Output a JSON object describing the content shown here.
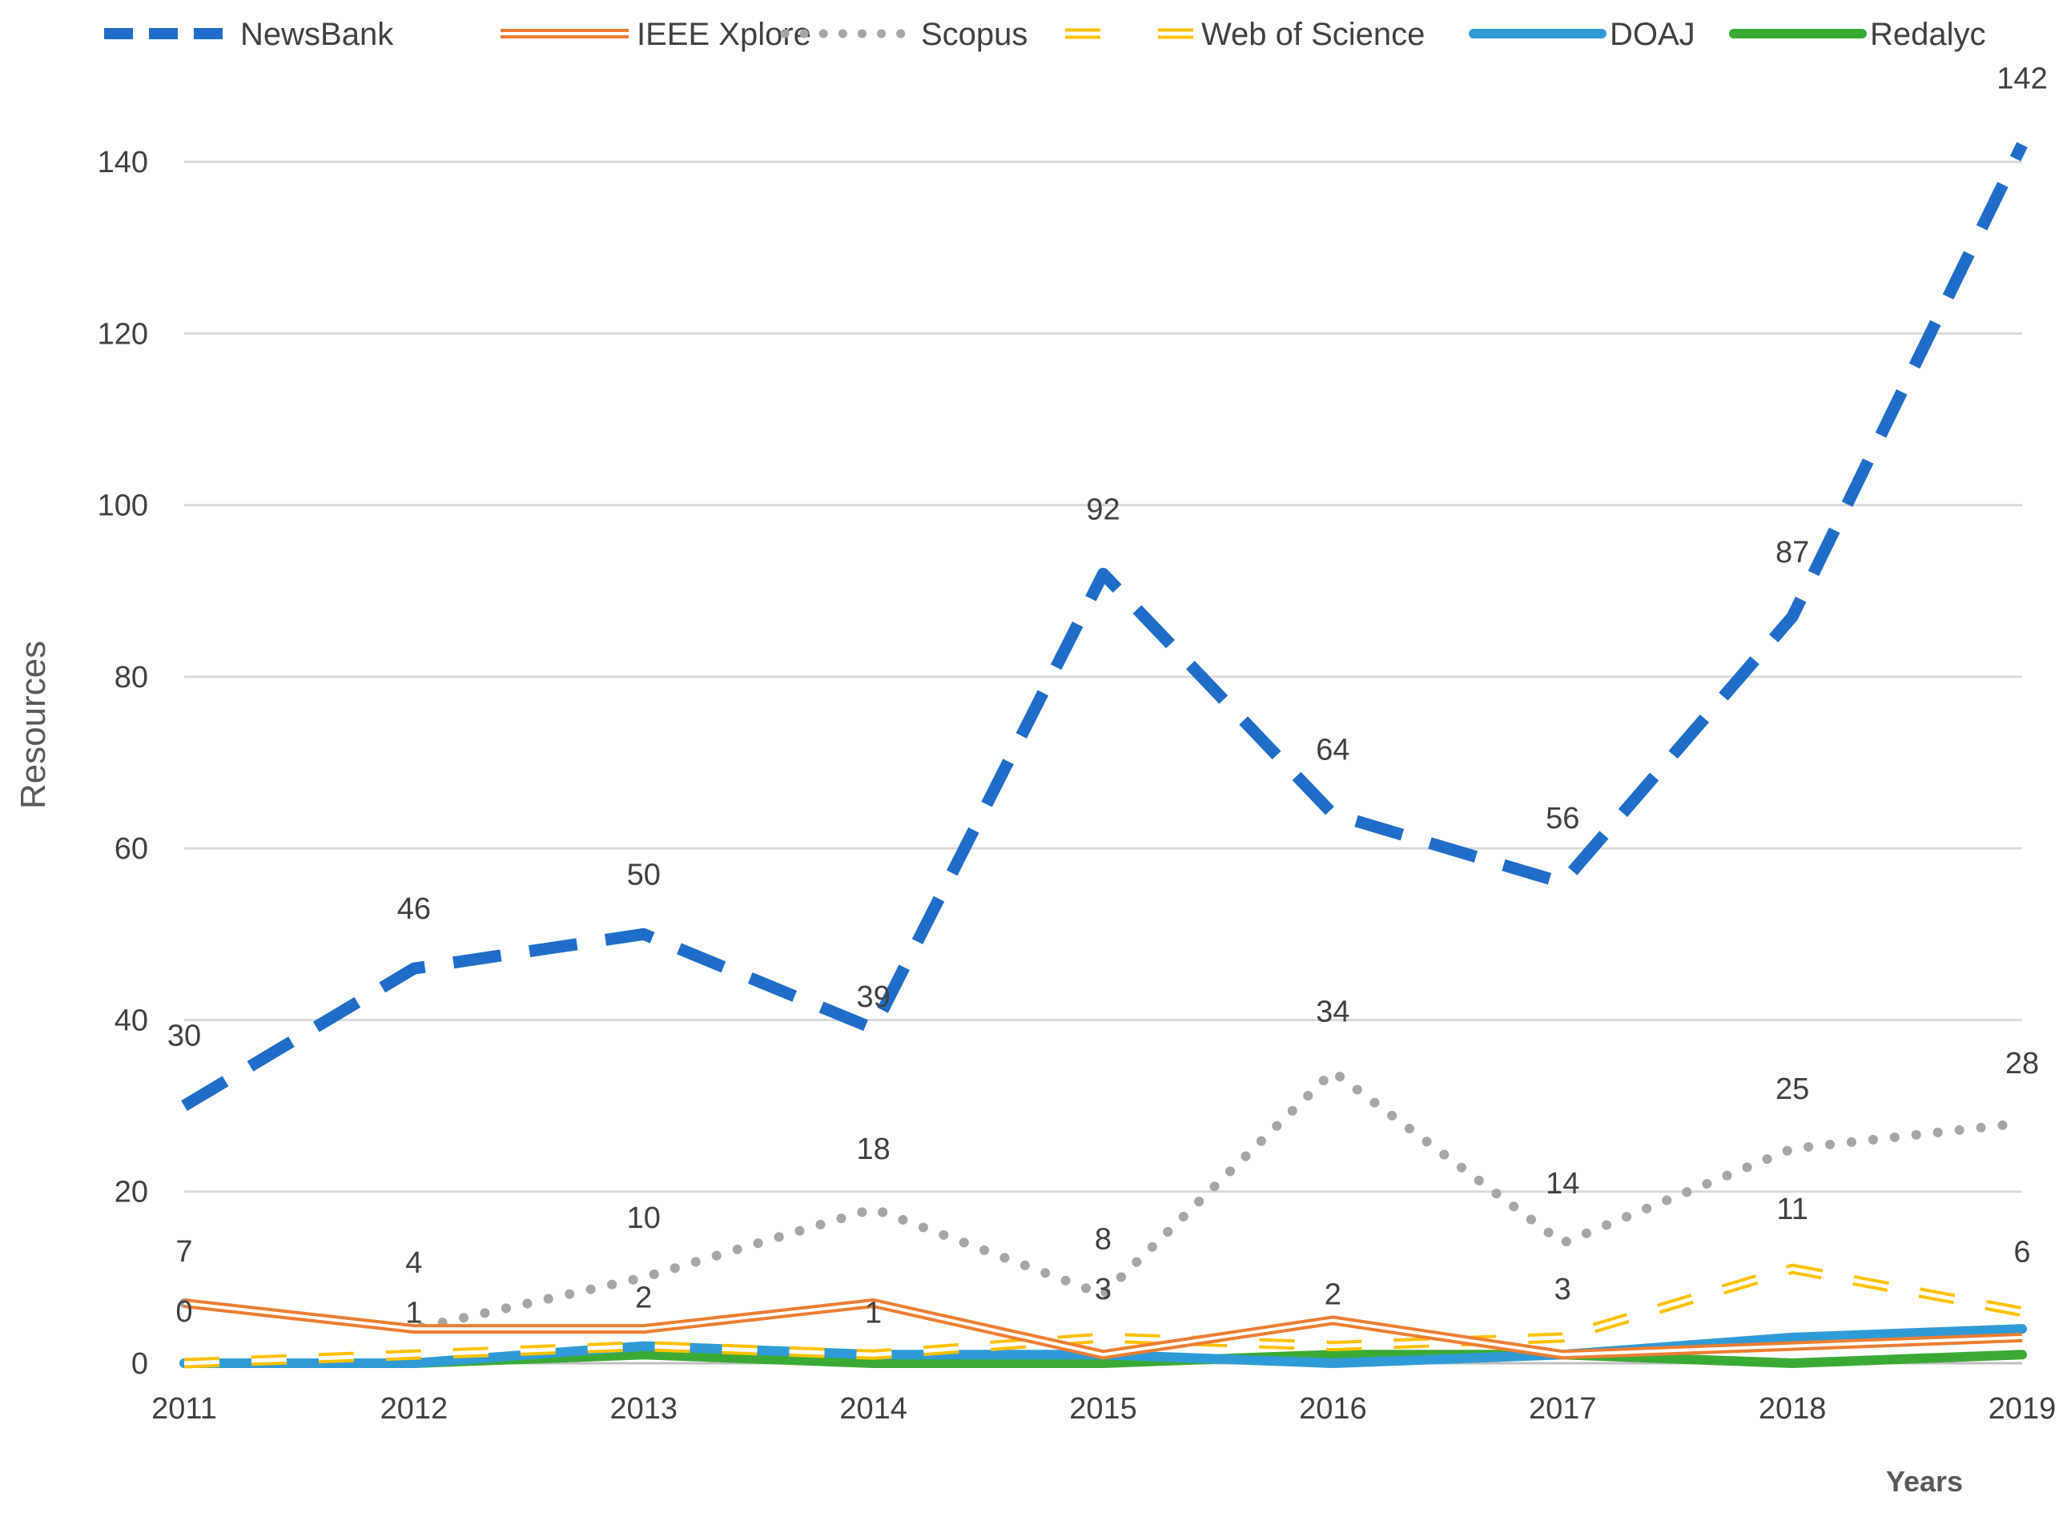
{
  "chart_data": {
    "type": "line",
    "title": "",
    "xlabel": "Years",
    "ylabel": "Resources",
    "x": [
      "2011",
      "2012",
      "2013",
      "2014",
      "2015",
      "2016",
      "2017",
      "2018",
      "2019"
    ],
    "ylim": [
      0,
      150
    ],
    "yticks": [
      "0",
      "20",
      "40",
      "60",
      "80",
      "100",
      "120",
      "140"
    ],
    "grid": true,
    "legend_position": "top",
    "series": [
      {
        "name": "NewsBank",
        "color": "#1F6DC8",
        "style": "dashed",
        "values": [
          30,
          46,
          50,
          39,
          92,
          64,
          56,
          87,
          142
        ],
        "labels": [
          "30",
          "46",
          "50",
          "39",
          "92",
          "64",
          "56",
          "87",
          "142"
        ]
      },
      {
        "name": "IEEE Xplore",
        "color": "#ED7D31",
        "style": "double",
        "values": [
          7,
          4,
          4,
          7,
          1,
          5,
          1,
          2,
          3
        ],
        "labels": [
          "7",
          "",
          "",
          "",
          "",
          "",
          "",
          "",
          ""
        ]
      },
      {
        "name": "Scopus",
        "color": "#A5A5A5",
        "style": "dotted",
        "values": [
          7,
          4,
          10,
          18,
          8,
          34,
          14,
          25,
          28
        ],
        "labels": [
          "",
          "4",
          "10",
          "18",
          "8",
          "34",
          "14",
          "25",
          "28"
        ]
      },
      {
        "name": "Web of Science",
        "color": "#FFC000",
        "style": "dashed-double",
        "values": [
          0,
          1,
          2,
          1,
          3,
          2,
          3,
          11,
          6
        ],
        "labels": [
          "0",
          "1",
          "2",
          "1",
          "3",
          "2",
          "3",
          "11",
          "6"
        ]
      },
      {
        "name": "DOAJ",
        "color": "#2E9BD6",
        "style": "solid",
        "values": [
          0,
          0,
          2,
          1,
          1,
          0,
          1,
          3,
          4
        ],
        "labels": [
          "",
          "",
          "",
          "",
          "",
          "",
          "",
          "",
          ""
        ]
      },
      {
        "name": "Redalyc",
        "color": "#3AAA35",
        "style": "solid",
        "values": [
          0,
          0,
          1,
          0,
          0,
          1,
          1,
          0,
          1
        ],
        "labels": [
          "",
          "",
          "",
          "",
          "",
          "",
          "",
          "",
          ""
        ]
      }
    ]
  }
}
